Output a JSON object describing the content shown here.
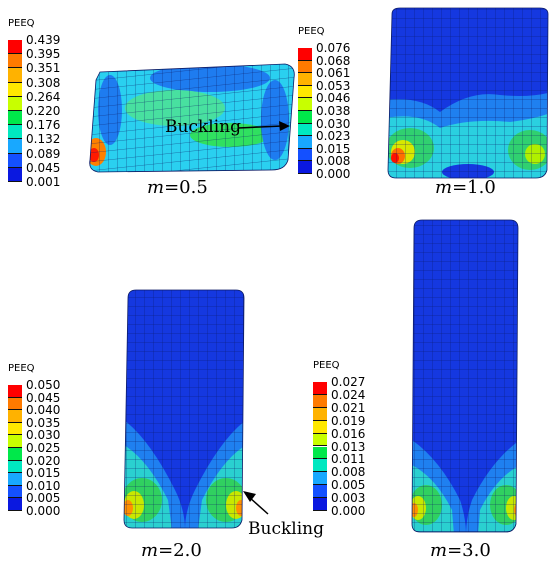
{
  "legend_title": "PEEQ",
  "panels": [
    {
      "label_var": "m",
      "label_rest": "=0.5",
      "legend_values": [
        "0.439",
        "0.395",
        "0.351",
        "0.308",
        "0.264",
        "0.220",
        "0.176",
        "0.132",
        "0.089",
        "0.045",
        "0.001"
      ]
    },
    {
      "label_var": "m",
      "label_rest": "=1.0",
      "legend_values": [
        "0.076",
        "0.068",
        "0.061",
        "0.053",
        "0.046",
        "0.038",
        "0.030",
        "0.023",
        "0.015",
        "0.008",
        "0.000"
      ]
    },
    {
      "label_var": "m",
      "label_rest": "=2.0",
      "legend_values": [
        "0.050",
        "0.045",
        "0.040",
        "0.035",
        "0.030",
        "0.025",
        "0.020",
        "0.015",
        "0.010",
        "0.005",
        "0.000"
      ]
    },
    {
      "label_var": "m",
      "label_rest": "=3.0",
      "legend_values": [
        "0.027",
        "0.024",
        "0.021",
        "0.019",
        "0.016",
        "0.013",
        "0.011",
        "0.008",
        "0.005",
        "0.003",
        "0.000"
      ]
    }
  ],
  "annotations": {
    "buckling_1": "Buckling",
    "buckling_2": "Buckling"
  },
  "colors": {
    "scale": [
      "#ff0000",
      "#ff7a00",
      "#ffb200",
      "#ffe800",
      "#c8ff00",
      "#5cff00",
      "#00e84a",
      "#00e8c0",
      "#18a8ff",
      "#1450ff",
      "#0a18e0"
    ],
    "mesh_blue": "#1538e0",
    "mesh_line": "#0b1a66"
  }
}
